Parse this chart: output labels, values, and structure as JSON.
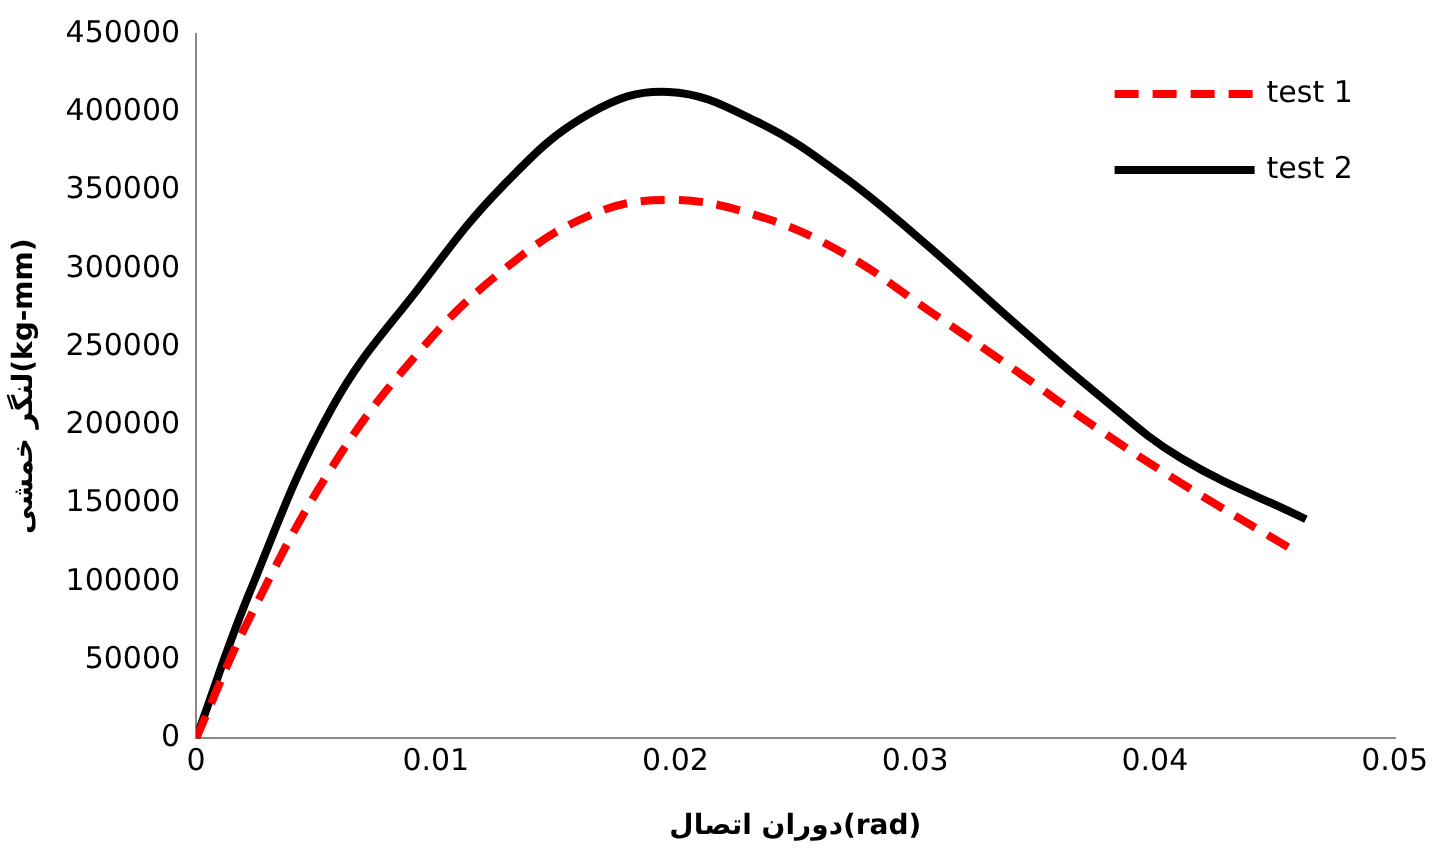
{
  "chart_data": {
    "type": "line",
    "xlabel": "دوران اتصال(rad)",
    "ylabel": "لنگر خمشی(kg-mm)",
    "xlim": [
      0,
      0.05
    ],
    "xticks": [
      0,
      0.01,
      0.02,
      0.03,
      0.04,
      0.05
    ],
    "ylim": [
      0,
      450000
    ],
    "yticks": [
      0,
      50000,
      100000,
      150000,
      200000,
      250000,
      300000,
      350000,
      400000,
      450000
    ],
    "grid": false,
    "legend": "top right",
    "marker": "none",
    "series": [
      {
        "name": "test 1",
        "color": "#ff0000",
        "line_style": "dashed",
        "x": [
          0,
          0.0022,
          0.0057,
          0.0093,
          0.0128,
          0.0164,
          0.0197,
          0.0234,
          0.027,
          0.0305,
          0.0341,
          0.0376,
          0.0411,
          0.0458
        ],
        "values": [
          0,
          76000,
          174000,
          247000,
          299000,
          334000,
          344000,
          334000,
          310000,
          274000,
          236000,
          198000,
          163000,
          120000
        ]
      },
      {
        "name": "test 2",
        "color": "#000000",
        "line_style": "solid",
        "x": [
          0,
          0.0022,
          0.0057,
          0.0093,
          0.0128,
          0.0164,
          0.0197,
          0.0234,
          0.027,
          0.0305,
          0.0341,
          0.0376,
          0.0411,
          0.0463
        ],
        "values": [
          0,
          92000,
          212000,
          288000,
          353000,
          399000,
          413000,
          394000,
          359000,
          315000,
          266000,
          220000,
          179000,
          140000
        ]
      }
    ]
  }
}
